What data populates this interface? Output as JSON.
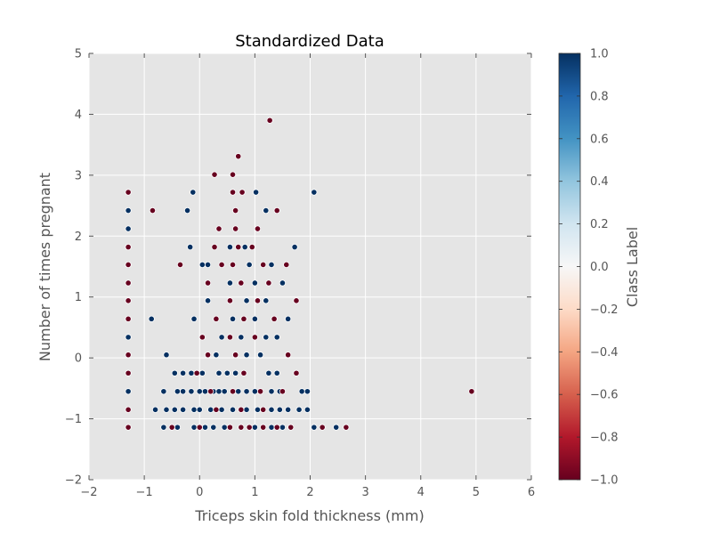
{
  "chart_data": {
    "type": "scatter",
    "title": "Standardized Data",
    "xlabel": "Triceps skin fold thickness (mm)",
    "ylabel": "Number of times pregnant",
    "xlim": [
      -2,
      6
    ],
    "ylim": [
      -2,
      5
    ],
    "xticks": [
      "−2",
      "−1",
      "0",
      "1",
      "2",
      "3",
      "4",
      "5",
      "6"
    ],
    "yticks": [
      "−2",
      "−1",
      "0",
      "1",
      "2",
      "3",
      "4",
      "5"
    ],
    "grid": true,
    "colorbar": {
      "label": "Class Label",
      "range": [
        -1,
        1
      ],
      "ticks": [
        "1.0",
        "0.8",
        "0.6",
        "0.4",
        "0.2",
        "0.0",
        "−0.2",
        "−0.4",
        "−0.6",
        "−0.8",
        "−1.0"
      ],
      "colormap": "RdBu"
    },
    "series": [
      {
        "class": 1,
        "color": "#053061",
        "points": [
          [
            -1.29,
            2.42
          ],
          [
            -1.29,
            2.12
          ],
          [
            -1.29,
            1.82
          ],
          [
            -1.29,
            1.53
          ],
          [
            -1.29,
            0.34
          ],
          [
            -1.29,
            -0.25
          ],
          [
            -1.29,
            -0.55
          ],
          [
            -0.87,
            0.64
          ],
          [
            -0.22,
            2.42
          ],
          [
            -0.12,
            2.72
          ],
          [
            -0.17,
            1.82
          ],
          [
            0.05,
            1.53
          ],
          [
            -0.1,
            0.64
          ],
          [
            0.15,
            0.94
          ],
          [
            1.02,
            2.72
          ],
          [
            2.07,
            2.72
          ],
          [
            1.72,
            1.82
          ],
          [
            1.2,
            2.42
          ],
          [
            0.55,
            1.82
          ],
          [
            0.82,
            1.82
          ],
          [
            0.15,
            1.53
          ],
          [
            0.9,
            1.53
          ],
          [
            1.0,
            1.23
          ],
          [
            0.55,
            1.23
          ],
          [
            1.3,
            1.53
          ],
          [
            1.5,
            1.23
          ],
          [
            0.85,
            0.94
          ],
          [
            1.2,
            0.94
          ],
          [
            1.6,
            0.64
          ],
          [
            0.6,
            0.64
          ],
          [
            1.0,
            0.64
          ],
          [
            0.4,
            0.34
          ],
          [
            0.75,
            0.34
          ],
          [
            1.2,
            0.34
          ],
          [
            1.4,
            0.34
          ],
          [
            0.3,
            0.05
          ],
          [
            0.85,
            0.05
          ],
          [
            1.1,
            0.05
          ],
          [
            -0.6,
            0.05
          ],
          [
            -0.45,
            -0.25
          ],
          [
            -0.3,
            -0.25
          ],
          [
            -0.15,
            -0.25
          ],
          [
            0.05,
            -0.25
          ],
          [
            0.35,
            -0.25
          ],
          [
            0.5,
            -0.25
          ],
          [
            0.65,
            -0.25
          ],
          [
            1.25,
            -0.25
          ],
          [
            1.4,
            -0.25
          ],
          [
            -0.65,
            -0.55
          ],
          [
            -0.4,
            -0.55
          ],
          [
            -0.3,
            -0.55
          ],
          [
            -0.15,
            -0.55
          ],
          [
            0.0,
            -0.55
          ],
          [
            0.1,
            -0.55
          ],
          [
            0.25,
            -0.55
          ],
          [
            0.35,
            -0.55
          ],
          [
            0.45,
            -0.55
          ],
          [
            0.7,
            -0.55
          ],
          [
            0.85,
            -0.55
          ],
          [
            1.0,
            -0.55
          ],
          [
            1.3,
            -0.55
          ],
          [
            1.45,
            -0.55
          ],
          [
            1.85,
            -0.55
          ],
          [
            1.95,
            -0.55
          ],
          [
            -0.8,
            -0.85
          ],
          [
            -0.6,
            -0.85
          ],
          [
            -0.45,
            -0.85
          ],
          [
            -0.3,
            -0.85
          ],
          [
            -0.1,
            -0.85
          ],
          [
            0.0,
            -0.85
          ],
          [
            0.2,
            -0.85
          ],
          [
            0.4,
            -0.85
          ],
          [
            0.6,
            -0.85
          ],
          [
            0.85,
            -0.85
          ],
          [
            1.05,
            -0.85
          ],
          [
            1.3,
            -0.85
          ],
          [
            1.45,
            -0.85
          ],
          [
            1.6,
            -0.85
          ],
          [
            1.8,
            -0.85
          ],
          [
            1.95,
            -0.85
          ],
          [
            -0.65,
            -1.14
          ],
          [
            -0.4,
            -1.14
          ],
          [
            -0.1,
            -1.14
          ],
          [
            0.1,
            -1.14
          ],
          [
            0.25,
            -1.14
          ],
          [
            0.45,
            -1.14
          ],
          [
            1.0,
            -1.14
          ],
          [
            1.3,
            -1.14
          ],
          [
            1.5,
            -1.14
          ],
          [
            2.07,
            -1.14
          ],
          [
            2.47,
            -1.14
          ]
        ]
      },
      {
        "class": -1,
        "color": "#67001f",
        "points": [
          [
            1.27,
            3.9
          ],
          [
            0.7,
            3.31
          ],
          [
            0.27,
            3.01
          ],
          [
            0.6,
            3.01
          ],
          [
            -1.29,
            2.72
          ],
          [
            0.6,
            2.72
          ],
          [
            0.77,
            2.72
          ],
          [
            -0.85,
            2.42
          ],
          [
            0.65,
            2.42
          ],
          [
            1.4,
            2.42
          ],
          [
            0.35,
            2.12
          ],
          [
            0.65,
            2.12
          ],
          [
            1.05,
            2.12
          ],
          [
            0.27,
            1.82
          ],
          [
            0.7,
            1.82
          ],
          [
            0.95,
            1.82
          ],
          [
            -1.29,
            1.82
          ],
          [
            -1.29,
            1.53
          ],
          [
            -0.35,
            1.53
          ],
          [
            0.4,
            1.53
          ],
          [
            0.6,
            1.53
          ],
          [
            1.15,
            1.53
          ],
          [
            1.57,
            1.53
          ],
          [
            -1.29,
            1.23
          ],
          [
            0.15,
            1.23
          ],
          [
            0.75,
            1.23
          ],
          [
            1.25,
            1.23
          ],
          [
            -1.29,
            0.94
          ],
          [
            0.55,
            0.94
          ],
          [
            1.05,
            0.94
          ],
          [
            1.75,
            0.94
          ],
          [
            -1.29,
            0.64
          ],
          [
            0.3,
            0.64
          ],
          [
            0.8,
            0.64
          ],
          [
            1.35,
            0.64
          ],
          [
            0.05,
            0.34
          ],
          [
            0.55,
            0.34
          ],
          [
            1.0,
            0.34
          ],
          [
            -1.29,
            0.05
          ],
          [
            0.15,
            0.05
          ],
          [
            0.65,
            0.05
          ],
          [
            1.6,
            0.05
          ],
          [
            -1.29,
            -0.25
          ],
          [
            -0.05,
            -0.25
          ],
          [
            0.8,
            -0.25
          ],
          [
            1.75,
            -0.25
          ],
          [
            0.2,
            -0.55
          ],
          [
            0.6,
            -0.55
          ],
          [
            1.1,
            -0.55
          ],
          [
            1.5,
            -0.55
          ],
          [
            4.92,
            -0.55
          ],
          [
            -1.29,
            -0.85
          ],
          [
            0.3,
            -0.85
          ],
          [
            0.75,
            -0.85
          ],
          [
            1.15,
            -0.85
          ],
          [
            -1.29,
            -1.14
          ],
          [
            -0.5,
            -1.14
          ],
          [
            0.0,
            -1.14
          ],
          [
            0.55,
            -1.14
          ],
          [
            0.75,
            -1.14
          ],
          [
            0.9,
            -1.14
          ],
          [
            1.15,
            -1.14
          ],
          [
            1.4,
            -1.14
          ],
          [
            1.65,
            -1.14
          ],
          [
            2.22,
            -1.14
          ],
          [
            2.65,
            -1.14
          ]
        ]
      }
    ]
  }
}
